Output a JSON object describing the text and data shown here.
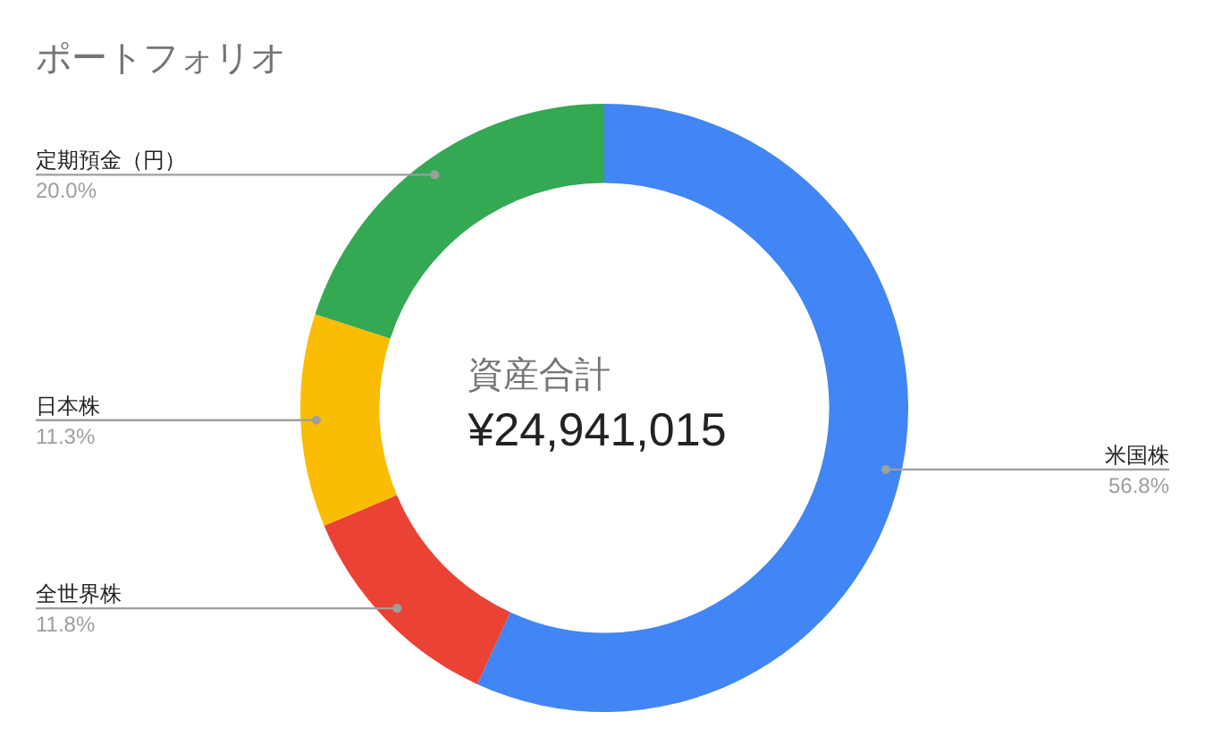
{
  "chart_data": {
    "type": "donut",
    "title": "ポートフォリオ",
    "categories": [
      "米国株",
      "全世界株",
      "日本株",
      "定期預金（円）"
    ],
    "values": [
      56.8,
      11.8,
      11.3,
      20.0
    ],
    "colors": [
      "#4285f4",
      "#ea4335",
      "#fbbc04",
      "#34a853"
    ],
    "value_labels": [
      "56.8%",
      "11.8%",
      "11.3%",
      "20.0%"
    ],
    "annotations": [
      "資産合計",
      "¥24,941,015"
    ]
  }
}
